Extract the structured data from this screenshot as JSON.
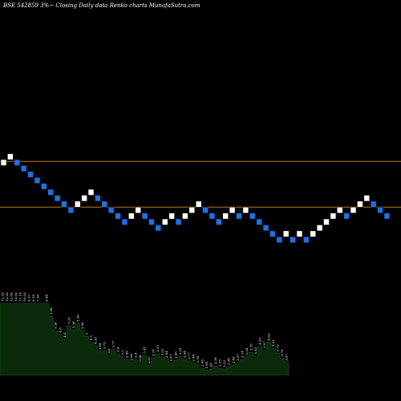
{
  "title": "BSE 542859 3%~  Closing Daily data  Renko  charts MunafaSutra.com",
  "colors": {
    "background": "#000000",
    "up_brick": "#ffffff",
    "down_brick": "#1f6fe6",
    "brick_border": "#0a0a0a",
    "reference_line": "#c07818",
    "volume_fill": "#0b2a0b",
    "volume_stroke": "#145214",
    "label": "#ffffff"
  },
  "chart_data": {
    "type": "renko",
    "brick_size": "3%",
    "bricks": [
      {
        "i": 0,
        "level": 0,
        "dir": "up"
      },
      {
        "i": 1,
        "level": 1,
        "dir": "up"
      },
      {
        "i": 2,
        "level": 0,
        "dir": "down"
      },
      {
        "i": 3,
        "level": -1,
        "dir": "down"
      },
      {
        "i": 4,
        "level": -2,
        "dir": "down"
      },
      {
        "i": 5,
        "level": -3,
        "dir": "down"
      },
      {
        "i": 6,
        "level": -4,
        "dir": "down"
      },
      {
        "i": 7,
        "level": -5,
        "dir": "down"
      },
      {
        "i": 8,
        "level": -6,
        "dir": "down"
      },
      {
        "i": 9,
        "level": -7,
        "dir": "down"
      },
      {
        "i": 10,
        "level": -8,
        "dir": "down"
      },
      {
        "i": 11,
        "level": -7,
        "dir": "up"
      },
      {
        "i": 12,
        "level": -6,
        "dir": "up"
      },
      {
        "i": 13,
        "level": -5,
        "dir": "up"
      },
      {
        "i": 14,
        "level": -6,
        "dir": "down"
      },
      {
        "i": 15,
        "level": -7,
        "dir": "down"
      },
      {
        "i": 16,
        "level": -8,
        "dir": "down"
      },
      {
        "i": 17,
        "level": -9,
        "dir": "down"
      },
      {
        "i": 18,
        "level": -10,
        "dir": "down"
      },
      {
        "i": 19,
        "level": -9,
        "dir": "up"
      },
      {
        "i": 20,
        "level": -8,
        "dir": "up"
      },
      {
        "i": 21,
        "level": -9,
        "dir": "down"
      },
      {
        "i": 22,
        "level": -10,
        "dir": "down"
      },
      {
        "i": 23,
        "level": -11,
        "dir": "down"
      },
      {
        "i": 24,
        "level": -10,
        "dir": "up"
      },
      {
        "i": 25,
        "level": -9,
        "dir": "up"
      },
      {
        "i": 26,
        "level": -10,
        "dir": "down"
      },
      {
        "i": 27,
        "level": -9,
        "dir": "up"
      },
      {
        "i": 28,
        "level": -8,
        "dir": "up"
      },
      {
        "i": 29,
        "level": -7,
        "dir": "up"
      },
      {
        "i": 30,
        "level": -8,
        "dir": "down"
      },
      {
        "i": 31,
        "level": -9,
        "dir": "down"
      },
      {
        "i": 32,
        "level": -10,
        "dir": "down"
      },
      {
        "i": 33,
        "level": -9,
        "dir": "up"
      },
      {
        "i": 34,
        "level": -8,
        "dir": "up"
      },
      {
        "i": 35,
        "level": -9,
        "dir": "down"
      },
      {
        "i": 36,
        "level": -8,
        "dir": "up"
      },
      {
        "i": 37,
        "level": -9,
        "dir": "down"
      },
      {
        "i": 38,
        "level": -10,
        "dir": "down"
      },
      {
        "i": 39,
        "level": -11,
        "dir": "down"
      },
      {
        "i": 40,
        "level": -12,
        "dir": "down"
      },
      {
        "i": 41,
        "level": -13,
        "dir": "down"
      },
      {
        "i": 42,
        "level": -12,
        "dir": "up"
      },
      {
        "i": 43,
        "level": -13,
        "dir": "down"
      },
      {
        "i": 44,
        "level": -12,
        "dir": "up"
      },
      {
        "i": 45,
        "level": -13,
        "dir": "down"
      },
      {
        "i": 46,
        "level": -12,
        "dir": "up"
      },
      {
        "i": 47,
        "level": -11,
        "dir": "up"
      },
      {
        "i": 48,
        "level": -10,
        "dir": "up"
      },
      {
        "i": 49,
        "level": -9,
        "dir": "up"
      },
      {
        "i": 50,
        "level": -8,
        "dir": "up"
      },
      {
        "i": 51,
        "level": -9,
        "dir": "down"
      },
      {
        "i": 52,
        "level": -8,
        "dir": "up"
      },
      {
        "i": 53,
        "level": -7,
        "dir": "up"
      },
      {
        "i": 54,
        "level": -6,
        "dir": "up"
      },
      {
        "i": 55,
        "level": -7,
        "dir": "down"
      },
      {
        "i": 56,
        "level": -8,
        "dir": "down"
      },
      {
        "i": 57,
        "level": -9,
        "dir": "down"
      }
    ],
    "reference_lines": [
      {
        "level": 0.2
      },
      {
        "level": -7.5
      }
    ],
    "volume_scale": 100,
    "volume": [
      {
        "v": 100,
        "label": "12.25"
      },
      {
        "v": 100,
        "label": "12.22"
      },
      {
        "v": 100,
        "label": "12.89"
      },
      {
        "v": 100,
        "label": "12.83"
      },
      {
        "v": 100,
        "label": "11.14"
      },
      {
        "v": 100,
        "label": "10.83"
      },
      {
        "v": 100,
        "label": "9.57"
      },
      {
        "v": 100,
        "label": "8.18"
      },
      {
        "v": 100,
        "label": "7.26"
      },
      {
        "v": 100,
        "label": ""
      },
      {
        "v": 100,
        "label": "6.44"
      },
      {
        "v": 82,
        "label": "5.98"
      },
      {
        "v": 62,
        "label": "5.26"
      },
      {
        "v": 57,
        "label": "4.6"
      },
      {
        "v": 50,
        "label": "4.4"
      },
      {
        "v": 69,
        "label": "5.31"
      },
      {
        "v": 63,
        "label": "5.56"
      },
      {
        "v": 72,
        "label": "5.59"
      },
      {
        "v": 62,
        "label": "5.06"
      },
      {
        "v": 54,
        "label": "5"
      },
      {
        "v": 46,
        "label": "4.5"
      },
      {
        "v": 41,
        "label": "4.28"
      },
      {
        "v": 33,
        "label": "3.89"
      },
      {
        "v": 34,
        "label": "3.73"
      },
      {
        "v": 28,
        "label": "3.6"
      },
      {
        "v": 36,
        "label": "3.77"
      },
      {
        "v": 30,
        "label": "3.6"
      },
      {
        "v": 26,
        "label": "3.2"
      },
      {
        "v": 22,
        "label": "2.89"
      },
      {
        "v": 18,
        "label": "2.66"
      },
      {
        "v": 22,
        "label": "2.9"
      },
      {
        "v": 16,
        "label": "2.68"
      },
      {
        "v": 28,
        "label": "3.41"
      },
      {
        "v": 14,
        "label": "2.81"
      },
      {
        "v": 24,
        "label": "3.76"
      },
      {
        "v": 30,
        "label": "3.55"
      },
      {
        "v": 25,
        "label": "3.22"
      },
      {
        "v": 22,
        "label": "2.84"
      },
      {
        "v": 17,
        "label": "2.67"
      },
      {
        "v": 21,
        "label": "2.66"
      },
      {
        "v": 26,
        "label": "3.25"
      },
      {
        "v": 22,
        "label": "2.84"
      },
      {
        "v": 20,
        "label": "2.77"
      },
      {
        "v": 17,
        "label": "2.44"
      },
      {
        "v": 15,
        "label": "2.18"
      },
      {
        "v": 10,
        "label": "2.06"
      },
      {
        "v": 7,
        "label": "1.95"
      },
      {
        "v": 5,
        "label": "1.83"
      },
      {
        "v": 13,
        "label": "2.39"
      },
      {
        "v": 10,
        "label": "2.35"
      },
      {
        "v": 9,
        "label": "2.23"
      },
      {
        "v": 12,
        "label": "2.24"
      },
      {
        "v": 14,
        "label": "2.48"
      },
      {
        "v": 18,
        "label": "2.87"
      },
      {
        "v": 22,
        "label": "3.14"
      },
      {
        "v": 26,
        "label": "3.34"
      },
      {
        "v": 32,
        "label": "3.76"
      },
      {
        "v": 27,
        "label": "3.43"
      },
      {
        "v": 40,
        "label": "4.29"
      },
      {
        "v": 35,
        "label": "3.97"
      },
      {
        "v": 46,
        "label": "4.63"
      },
      {
        "v": 38,
        "label": "4.01"
      },
      {
        "v": 31,
        "label": "3.72"
      },
      {
        "v": 24,
        "label": "3.76"
      },
      {
        "v": 18,
        "label": "2.87"
      }
    ]
  }
}
